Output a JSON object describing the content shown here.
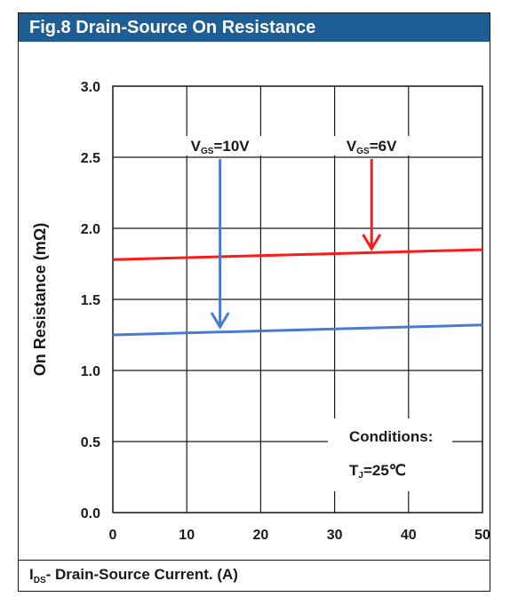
{
  "title": "Fig.8 Drain-Source On Resistance",
  "footer": {
    "xlabel_main": "I",
    "xlabel_sub": "DS",
    "xlabel_rest": "- Drain-Source Current. (A)"
  },
  "chart_data": {
    "type": "line",
    "title": "Fig.8 Drain-Source On Resistance",
    "xlabel": "IDS- Drain-Source Current. (A)",
    "ylabel": "On Resistance (mΩ)",
    "xlim": [
      0,
      50
    ],
    "ylim": [
      0,
      3.0
    ],
    "x_ticks": [
      "0",
      "10",
      "20",
      "30",
      "40",
      "50"
    ],
    "y_ticks": [
      "0.0",
      "0.5",
      "1.0",
      "1.5",
      "2.0",
      "2.5",
      "3.0"
    ],
    "grid": true,
    "series": [
      {
        "name": "VGS=6V",
        "color": "#ff1a1a",
        "x": [
          0,
          50
        ],
        "y": [
          1.78,
          1.85
        ]
      },
      {
        "name": "VGS=10V",
        "color": "#4a7bd4",
        "x": [
          0,
          50
        ],
        "y": [
          1.25,
          1.32
        ]
      }
    ],
    "annotations": [
      {
        "main": "V",
        "sub": "GS",
        "rest": "=10V",
        "points_to_series": 1,
        "x": 14.5,
        "arrow_from_y": 2.5,
        "arrow_to_y": 1.3
      },
      {
        "main": "V",
        "sub": "GS",
        "rest": "=6V",
        "points_to_series": 0,
        "x": 35,
        "arrow_from_y": 2.5,
        "arrow_to_y": 1.85
      }
    ],
    "conditions": {
      "line1": "Conditions:",
      "line2_main": "T",
      "line2_sub": "J",
      "line2_rest": "=25℃"
    }
  }
}
